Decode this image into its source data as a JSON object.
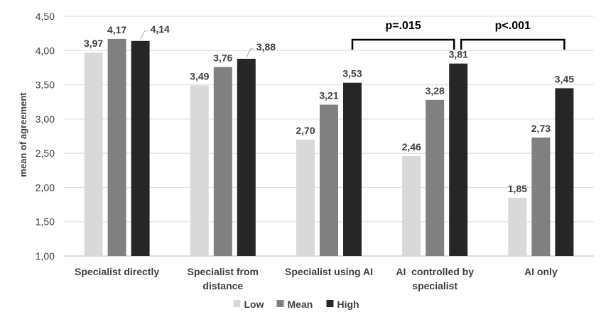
{
  "chart_data": {
    "type": "bar",
    "ylabel": "mean of agreement",
    "ylim": [
      1.0,
      4.5
    ],
    "ytick_values": [
      1.0,
      1.5,
      2.0,
      2.5,
      3.0,
      3.5,
      4.0,
      4.5
    ],
    "ytick_labels": [
      "1,00",
      "1,50",
      "2,00",
      "2,50",
      "3,00",
      "3,50",
      "4,00",
      "4,50"
    ],
    "grid": true,
    "legend_position": "bottom",
    "categories": [
      [
        "Specialist directly"
      ],
      [
        "Specialist from",
        "distance"
      ],
      [
        "Specialist using AI"
      ],
      [
        "AI  controlled by",
        "specialist"
      ],
      [
        "AI only"
      ]
    ],
    "series": [
      {
        "name": "Low",
        "color": "#d9d9d9",
        "values": [
          3.97,
          3.49,
          2.7,
          2.46,
          1.85
        ],
        "labels": [
          "3,97",
          "3,49",
          "2,70",
          "2,46",
          "1,85"
        ]
      },
      {
        "name": "Mean",
        "color": "#808080",
        "values": [
          4.17,
          3.76,
          3.21,
          3.28,
          2.73
        ],
        "labels": [
          "4,17",
          "3,76",
          "3,21",
          "3,28",
          "2,73"
        ]
      },
      {
        "name": "High",
        "color": "#262626",
        "values": [
          4.14,
          3.88,
          3.53,
          3.81,
          3.45
        ],
        "labels": [
          "4,14",
          "3,88",
          "3,53",
          "3,81",
          "3,45"
        ]
      }
    ],
    "annotations": [
      {
        "text": "p=.015",
        "from_category": 2,
        "to_category": 3,
        "series": "High"
      },
      {
        "text": "p<.001",
        "from_category": 3,
        "to_category": 4,
        "series": "High"
      }
    ]
  }
}
